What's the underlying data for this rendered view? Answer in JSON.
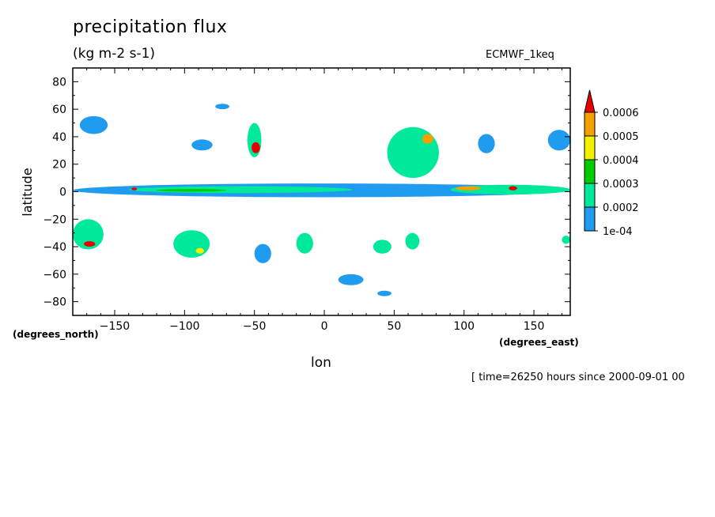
{
  "header": {
    "title": "precipitation flux",
    "units": "(kg m-2 s-1)",
    "dataset": "ECMWF_1keq",
    "time_note": "[ time=26250 hours since 2000-09-01 00"
  },
  "chart_data": {
    "type": "heatmap",
    "subtype": "filled contour map",
    "xlabel": "lon",
    "ylabel": "latitude",
    "x_unit_label": "(degrees_east)",
    "y_unit_label": "(degrees_north)",
    "xlim": [
      -180,
      176
    ],
    "ylim": [
      -90,
      90
    ],
    "x_ticks": [
      -150,
      -100,
      -50,
      0,
      50,
      100,
      150
    ],
    "y_ticks": [
      80,
      60,
      40,
      20,
      0,
      -20,
      -40,
      -60,
      -80
    ],
    "colorbar": {
      "labels": [
        "1e-04",
        "0.0002",
        "0.0003",
        "0.0004",
        "0.0005",
        "0.0006"
      ],
      "levels": [
        0.0001,
        0.0002,
        0.0003,
        0.0004,
        0.0005,
        0.0006
      ],
      "colors": [
        "#1f9cf0",
        "#00e89a",
        "#00cc00",
        "#f2f200",
        "#f4a000",
        "#e80000"
      ],
      "extend": "max"
    },
    "regions": [
      {
        "lon": [
          -180,
          176
        ],
        "lat": [
          -4,
          6
        ],
        "level": 0.0001
      },
      {
        "lon": [
          -140,
          20
        ],
        "lat": [
          -1,
          4
        ],
        "level": 0.0002
      },
      {
        "lon": [
          -120,
          -70
        ],
        "lat": [
          0,
          2
        ],
        "level": 0.0003
      },
      {
        "lon": [
          -138,
          -134
        ],
        "lat": [
          1,
          3
        ],
        "level": 0.0006
      },
      {
        "lon": [
          90,
          176
        ],
        "lat": [
          -2,
          5
        ],
        "level": 0.0002
      },
      {
        "lon": [
          94,
          112
        ],
        "lat": [
          1,
          4
        ],
        "level": 0.0005
      },
      {
        "lon": [
          132,
          138
        ],
        "lat": [
          1,
          4
        ],
        "level": 0.0006
      },
      {
        "lon": [
          -180,
          -158
        ],
        "lat": [
          -42,
          -20
        ],
        "level": 0.0002
      },
      {
        "lon": [
          -172,
          -164
        ],
        "lat": [
          -40,
          -36
        ],
        "level": 0.0006
      },
      {
        "lon": [
          -55,
          -45
        ],
        "lat": [
          25,
          50
        ],
        "level": 0.0002
      },
      {
        "lon": [
          -52,
          -46
        ],
        "lat": [
          28,
          36
        ],
        "level": 0.0006
      },
      {
        "lon": [
          45,
          82
        ],
        "lat": [
          10,
          47
        ],
        "level": 0.0002
      },
      {
        "lon": [
          70,
          78
        ],
        "lat": [
          35,
          42
        ],
        "level": 0.0005
      },
      {
        "lon": [
          -108,
          -82
        ],
        "lat": [
          -48,
          -28
        ],
        "level": 0.0002
      },
      {
        "lon": [
          -92,
          -86
        ],
        "lat": [
          -45,
          -41
        ],
        "level": 0.0004
      },
      {
        "lon": [
          -175,
          -155
        ],
        "lat": [
          42,
          55
        ],
        "level": 0.0001
      },
      {
        "lon": [
          -95,
          -80
        ],
        "lat": [
          30,
          38
        ],
        "level": 0.0001
      },
      {
        "lon": [
          110,
          122
        ],
        "lat": [
          28,
          42
        ],
        "level": 0.0001
      },
      {
        "lon": [
          -20,
          -8
        ],
        "lat": [
          -45,
          -30
        ],
        "level": 0.0002
      },
      {
        "lon": [
          35,
          48
        ],
        "lat": [
          -45,
          -35
        ],
        "level": 0.0002
      },
      {
        "lon": [
          58,
          68
        ],
        "lat": [
          -42,
          -30
        ],
        "level": 0.0002
      },
      {
        "lon": [
          -50,
          -38
        ],
        "lat": [
          -52,
          -38
        ],
        "level": 0.0001
      },
      {
        "lon": [
          160,
          176
        ],
        "lat": [
          30,
          45
        ],
        "level": 0.0001
      },
      {
        "lon": [
          -78,
          -68
        ],
        "lat": [
          60,
          64
        ],
        "level": 0.0001
      },
      {
        "lon": [
          10,
          28
        ],
        "lat": [
          -68,
          -60
        ],
        "level": 0.0001
      },
      {
        "lon": [
          38,
          48
        ],
        "lat": [
          -76,
          -72
        ],
        "level": 0.0001
      },
      {
        "lon": [
          170,
          176
        ],
        "lat": [
          -38,
          -32
        ],
        "level": 0.0002
      }
    ]
  }
}
